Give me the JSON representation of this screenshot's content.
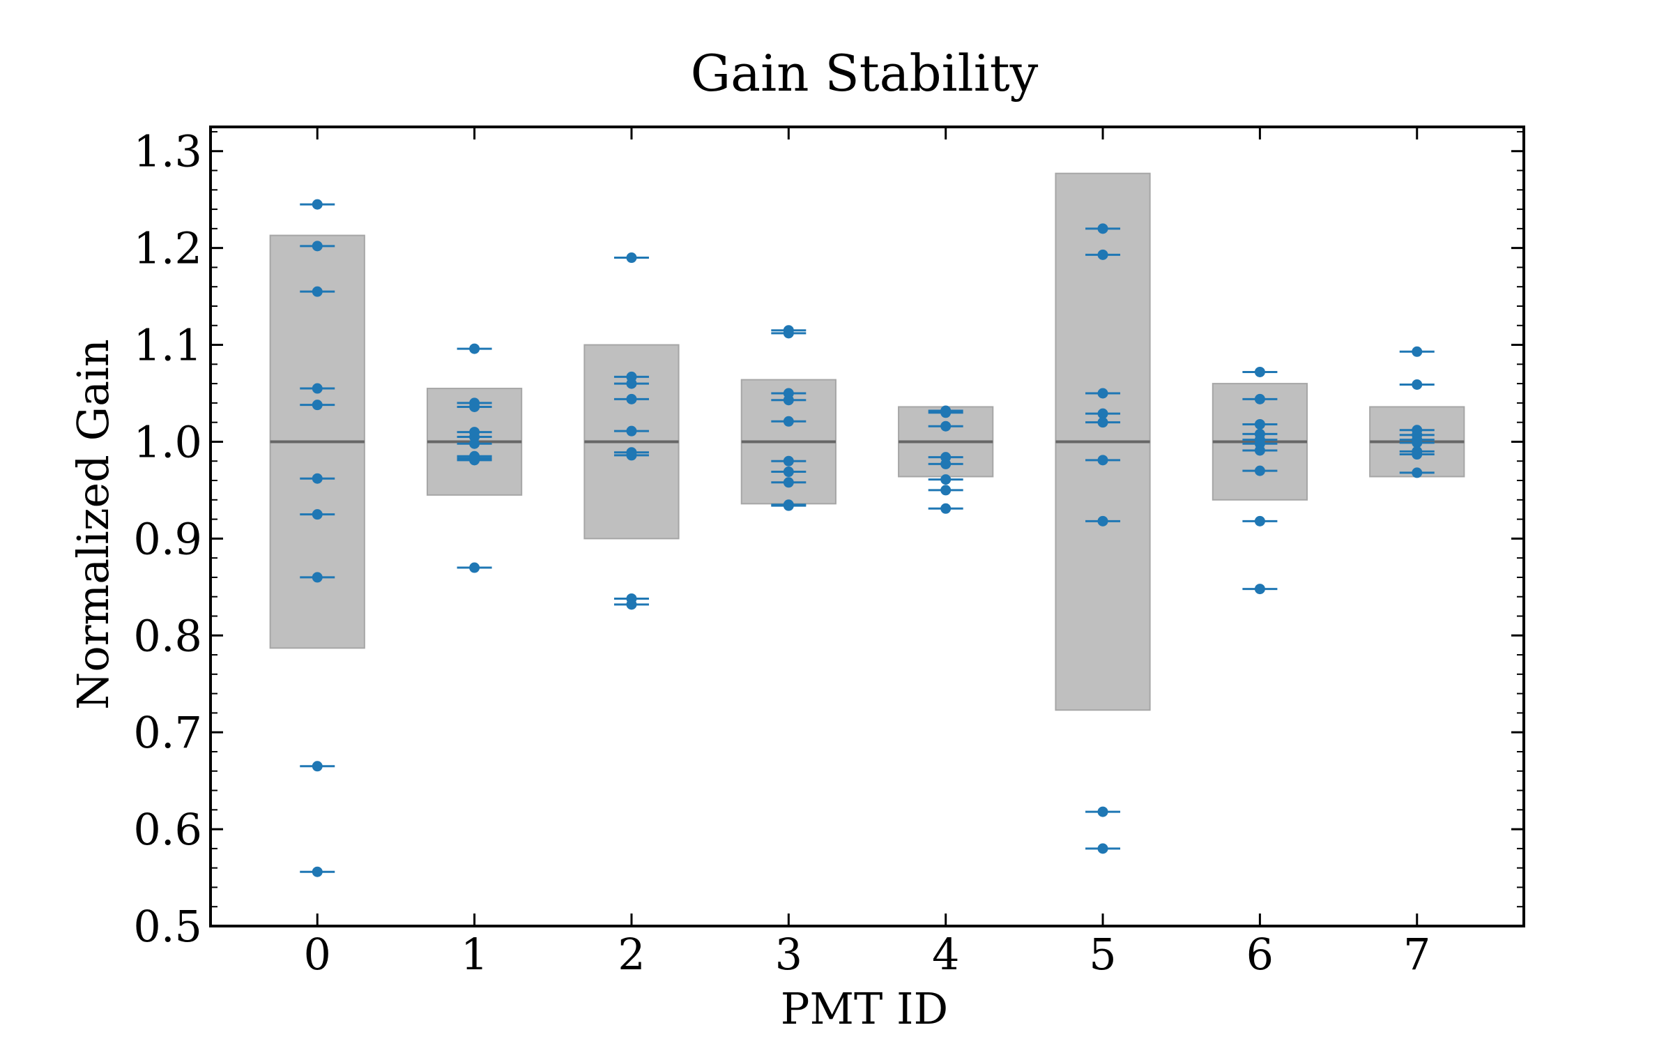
{
  "chart_data": {
    "type": "scatter",
    "title": "Gain Stability",
    "xlabel": "PMT ID",
    "ylabel": "Normalized Gain",
    "xlim": [
      -0.68,
      7.68
    ],
    "ylim": [
      0.5,
      1.325
    ],
    "x_ticks": [
      0,
      1,
      2,
      3,
      4,
      5,
      6,
      7
    ],
    "y_ticks": [
      0.5,
      0.6,
      0.7,
      0.8,
      0.9,
      1.0,
      1.1,
      1.2,
      1.3
    ],
    "y_tick_labels": [
      "0.5",
      "0.6",
      "0.7",
      "0.8",
      "0.9",
      "1.0",
      "1.1",
      "1.2",
      "1.3"
    ],
    "reference_line": 1.0,
    "bands": [
      {
        "pmt": 0,
        "low": 0.787,
        "high": 1.213
      },
      {
        "pmt": 1,
        "low": 0.945,
        "high": 1.055
      },
      {
        "pmt": 2,
        "low": 0.9,
        "high": 1.1
      },
      {
        "pmt": 3,
        "low": 0.936,
        "high": 1.064
      },
      {
        "pmt": 4,
        "low": 0.964,
        "high": 1.036
      },
      {
        "pmt": 5,
        "low": 0.723,
        "high": 1.277
      },
      {
        "pmt": 6,
        "low": 0.94,
        "high": 1.06
      },
      {
        "pmt": 7,
        "low": 0.964,
        "high": 1.036
      }
    ],
    "series": [
      {
        "pmt": 0,
        "values": [
          1.245,
          1.202,
          1.155,
          1.055,
          1.038,
          0.962,
          0.925,
          0.86,
          0.665,
          0.556
        ]
      },
      {
        "pmt": 1,
        "values": [
          1.096,
          1.04,
          1.036,
          1.01,
          1.005,
          0.998,
          0.985,
          0.983,
          0.981,
          0.87
        ]
      },
      {
        "pmt": 2,
        "values": [
          1.19,
          1.067,
          1.06,
          1.044,
          1.011,
          0.989,
          0.986,
          0.838,
          0.832
        ]
      },
      {
        "pmt": 3,
        "values": [
          1.115,
          1.112,
          1.05,
          1.043,
          1.021,
          0.98,
          0.969,
          0.958,
          0.935,
          0.934
        ]
      },
      {
        "pmt": 4,
        "values": [
          1.032,
          1.03,
          1.016,
          0.984,
          0.977,
          0.961,
          0.95,
          0.931
        ]
      },
      {
        "pmt": 5,
        "values": [
          1.22,
          1.193,
          1.05,
          1.029,
          1.02,
          0.981,
          0.918,
          0.618,
          0.58
        ]
      },
      {
        "pmt": 6,
        "values": [
          1.072,
          1.044,
          1.018,
          1.008,
          1.002,
          0.998,
          0.991,
          0.97,
          0.918,
          0.848
        ]
      },
      {
        "pmt": 7,
        "values": [
          1.093,
          1.059,
          1.012,
          1.007,
          1.002,
          0.999,
          0.99,
          0.987,
          0.968
        ]
      }
    ],
    "colors": {
      "points": "#1f77b4",
      "band_fill": "#bfbfbf",
      "band_edge": "#a6a6a6",
      "reference_line": "#666666"
    },
    "grid": false,
    "legend": "none"
  }
}
